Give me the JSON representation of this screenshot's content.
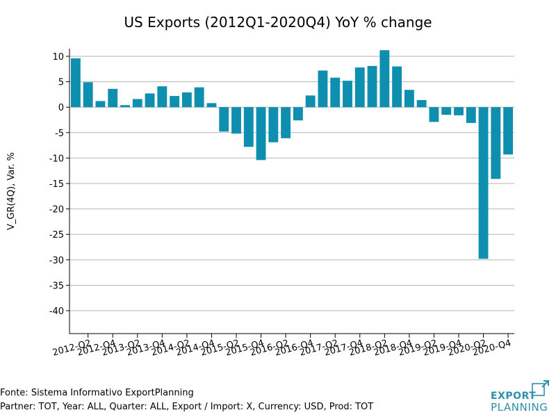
{
  "chart_data": {
    "type": "bar",
    "title": "US Exports (2012Q1-2020Q4) YoY % change",
    "xlabel": "",
    "ylabel": "V_GR(4Q), Var. %",
    "ylim": [
      -44.5,
      11.5
    ],
    "yticks": [
      10,
      5,
      0,
      -5,
      -10,
      -15,
      -20,
      -25,
      -30,
      -35,
      -40
    ],
    "grid": true,
    "bar_color": "#0f8fb0",
    "categories": [
      "2012-Q1",
      "2012-Q2",
      "2012-Q3",
      "2012-Q4",
      "2013-Q1",
      "2013-Q2",
      "2013-Q3",
      "2013-Q4",
      "2014-Q1",
      "2014-Q2",
      "2014-Q3",
      "2014-Q4",
      "2015-Q1",
      "2015-Q2",
      "2015-Q3",
      "2015-Q4",
      "2016-Q1",
      "2016-Q2",
      "2016-Q3",
      "2016-Q4",
      "2017-Q1",
      "2017-Q2",
      "2017-Q3",
      "2017-Q4",
      "2018-Q1",
      "2018-Q2",
      "2018-Q3",
      "2018-Q4",
      "2019-Q1",
      "2019-Q2",
      "2019-Q3",
      "2019-Q4",
      "2020-Q1",
      "2020-Q2",
      "2020-Q3",
      "2020-Q4"
    ],
    "tick_labels": [
      "",
      "2012-Q2",
      "",
      "2012-Q4",
      "",
      "2013-Q2",
      "",
      "2013-Q4",
      "",
      "2014-Q2",
      "",
      "2014-Q4",
      "",
      "2015-Q2",
      "",
      "2015-Q4",
      "",
      "2016-Q2",
      "",
      "2016-Q4",
      "",
      "2017-Q2",
      "",
      "2017-Q4",
      "",
      "2018-Q2",
      "",
      "2018-Q4",
      "",
      "2019-Q2",
      "",
      "2019-Q4",
      "",
      "2020-Q2",
      "",
      "2020-Q4"
    ],
    "values": [
      9.6,
      4.9,
      1.2,
      3.6,
      0.4,
      1.6,
      2.7,
      4.1,
      2.2,
      2.9,
      3.9,
      0.8,
      -4.8,
      -5.2,
      -7.8,
      -10.4,
      -6.9,
      -6.1,
      -2.6,
      2.3,
      7.2,
      5.8,
      5.2,
      7.8,
      8.1,
      11.2,
      8.0,
      3.4,
      1.4,
      -2.9,
      -1.5,
      -1.6,
      -3.1,
      -29.8,
      -14.1,
      -9.3
    ]
  },
  "footer": {
    "source": "Fonte: Sistema Informativo ExportPlanning",
    "params": "Partner: TOT, Year: ALL, Quarter: ALL, Export / Import: X, Currency: USD, Prod: TOT"
  },
  "logo": {
    "line1": "EXPORT",
    "line2": "PLANNING",
    "color": "#2d8fab"
  }
}
